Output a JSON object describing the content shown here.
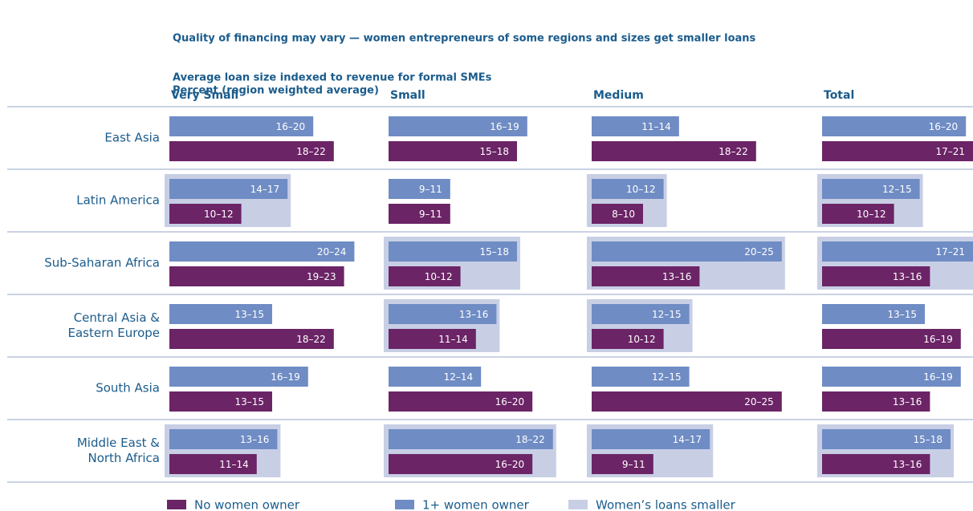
{
  "chart_data": {
    "type": "bar",
    "title": "Quality of financing may vary — women entrepreneurs of some regions and sizes get smaller loans",
    "subtitle": "Average loan size indexed to revenue for formal SMEs",
    "subtitle2": "Percent (region weighted average)",
    "panels": [
      "Very Small",
      "Small",
      "Medium",
      "Total"
    ],
    "categories": [
      "East Asia",
      "Latin America",
      "Sub-Saharan Africa",
      "Central Asia &\nEastern Europe",
      "South Asia",
      "Middle East &\nNorth Africa"
    ],
    "series": [
      {
        "name": "No women owner",
        "color": "#6b2466",
        "values": [
          [
            20,
            11,
            21,
            20,
            14,
            12.5
          ],
          [
            16.5,
            10,
            11,
            12.5,
            18,
            18
          ],
          [
            20,
            9,
            14.5,
            11,
            22.5,
            10
          ],
          [
            19,
            11,
            14.5,
            17.5,
            14.5,
            14.5
          ]
        ],
        "value_labels": [
          [
            "18–22",
            "10–12",
            "19–23",
            "18–22",
            "13–15",
            "11–14"
          ],
          [
            "15–18",
            "9–11",
            "10-12",
            "11–14",
            "16–20",
            "16–20"
          ],
          [
            "18–22",
            "8–10",
            "13–16",
            "10-12",
            "20–25",
            "9–11"
          ],
          [
            "17–21",
            "10–12",
            "13–16",
            "16–19",
            "13–16",
            "13–16"
          ]
        ]
      },
      {
        "name": "1+ women owner",
        "color": "#6f8cc4",
        "values": [
          [
            18,
            15.5,
            22,
            14,
            17.5,
            14.5
          ],
          [
            17.5,
            10,
            16.5,
            14.5,
            13,
            20
          ],
          [
            12.5,
            11,
            22.5,
            13.5,
            13.5,
            15.5
          ],
          [
            18,
            13.5,
            19,
            14,
            17.5,
            16.5
          ]
        ],
        "value_labels": [
          [
            "16–20",
            "14–17",
            "20–24",
            "13–15",
            "16–19",
            "13–16"
          ],
          [
            "16–19",
            "9–11",
            "15–18",
            "13–16",
            "12–14",
            "18–22"
          ],
          [
            "11–14",
            "10–12",
            "20–25",
            "12–15",
            "12–15",
            "14–17"
          ],
          [
            "16–20",
            "12–15",
            "17–21",
            "13–15",
            "16–19",
            "15–18"
          ]
        ]
      }
    ],
    "highlight": {
      "name": "Women’s loans smaller",
      "color": "#c8cfe5",
      "values": [
        [
          false,
          true,
          false,
          false,
          false,
          true
        ],
        [
          false,
          false,
          true,
          true,
          false,
          true
        ],
        [
          false,
          true,
          true,
          true,
          false,
          true
        ],
        [
          false,
          true,
          true,
          false,
          false,
          true
        ]
      ]
    }
  }
}
